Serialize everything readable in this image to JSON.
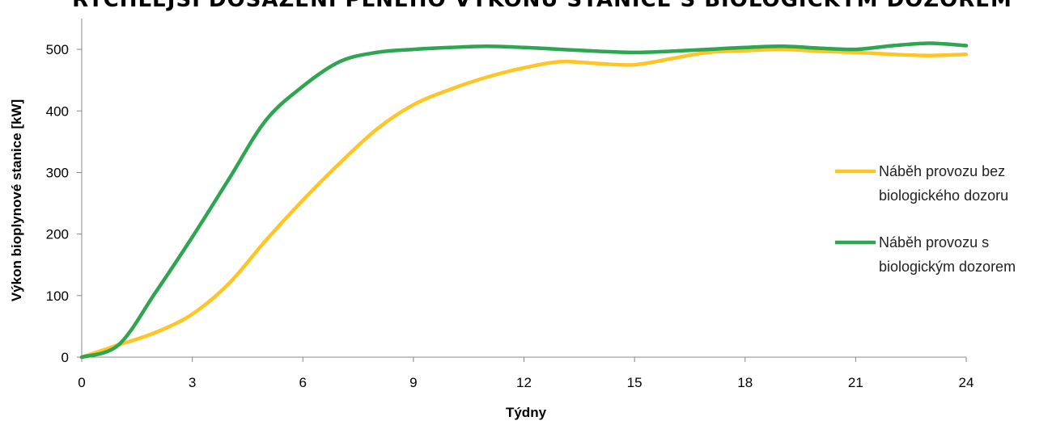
{
  "chart_data": {
    "type": "line",
    "title": "RYCHLEJŠÍ DOSAŽENÍ PLNÉHO VÝKONU STANICE S BIOLOGICKÝM DOZOREM",
    "xlabel": "Týdny",
    "ylabel": "Výkon bioplynové stanice [kW]",
    "xlim": [
      0,
      24
    ],
    "ylim": [
      0,
      550
    ],
    "x_ticks": [
      0,
      3,
      6,
      9,
      12,
      15,
      18,
      21,
      24
    ],
    "y_ticks": [
      0,
      100,
      200,
      300,
      400,
      500
    ],
    "grid": false,
    "legend_position": "right",
    "series": [
      {
        "name_lines": [
          "Náběh provozu bez",
          "biologického dozoru"
        ],
        "color": "#FFC425",
        "x": [
          0,
          1,
          2,
          3,
          4,
          5,
          6,
          7,
          8,
          9,
          10,
          11,
          12,
          13,
          14,
          15,
          16,
          17,
          18,
          19,
          20,
          21,
          22,
          23,
          24
        ],
        "y": [
          0,
          20,
          40,
          70,
          120,
          190,
          255,
          315,
          370,
          410,
          435,
          455,
          470,
          480,
          477,
          475,
          485,
          495,
          498,
          500,
          497,
          495,
          492,
          490,
          492
        ]
      },
      {
        "name_lines": [
          "Náběh provozu s",
          "biologickým dozorem"
        ],
        "color": "#2EA651",
        "x": [
          0,
          1,
          2,
          3,
          4,
          5,
          6,
          7,
          8,
          9,
          10,
          11,
          12,
          13,
          14,
          15,
          16,
          17,
          18,
          19,
          20,
          21,
          22,
          23,
          24
        ],
        "y": [
          0,
          20,
          105,
          195,
          290,
          385,
          440,
          480,
          495,
          500,
          503,
          505,
          503,
          500,
          497,
          495,
          497,
          500,
          503,
          505,
          502,
          500,
          506,
          510,
          506
        ]
      }
    ]
  }
}
